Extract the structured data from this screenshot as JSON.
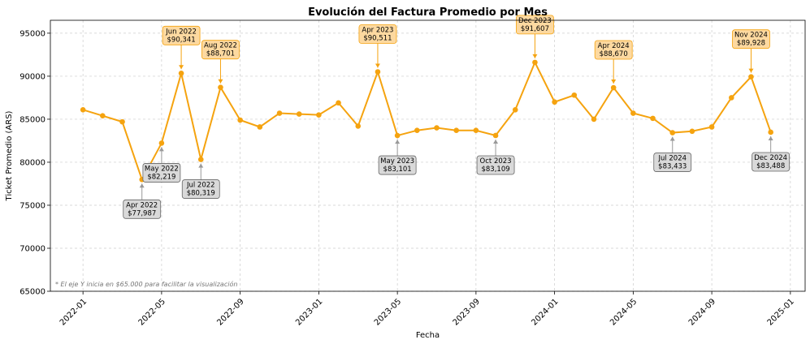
{
  "chart_data": {
    "type": "line",
    "title": "Evolución del Factura Promedio por Mes",
    "xlabel": "Fecha",
    "ylabel": "Ticket Promedio (ARS)",
    "ylim": [
      65000,
      96500
    ],
    "y_ticks": [
      65000,
      70000,
      75000,
      80000,
      85000,
      90000,
      95000
    ],
    "x_ticks": [
      "2022-01",
      "2022-05",
      "2022-09",
      "2023-01",
      "2023-05",
      "2023-09",
      "2024-01",
      "2024-05",
      "2024-09",
      "2025-01"
    ],
    "grid": true,
    "line_color": "#f5a30f",
    "note": "* El eje Y inicia en $65.000 para facilitar la visualización",
    "x": [
      "2022-01",
      "2022-02",
      "2022-03",
      "2022-04",
      "2022-05",
      "2022-06",
      "2022-07",
      "2022-08",
      "2022-09",
      "2022-10",
      "2022-11",
      "2022-12",
      "2023-01",
      "2023-02",
      "2023-03",
      "2023-04",
      "2023-05",
      "2023-06",
      "2023-07",
      "2023-08",
      "2023-09",
      "2023-10",
      "2023-11",
      "2023-12",
      "2024-01",
      "2024-02",
      "2024-03",
      "2024-04",
      "2024-05",
      "2024-06",
      "2024-07",
      "2024-08",
      "2024-09",
      "2024-10",
      "2024-11",
      "2024-12"
    ],
    "values": [
      86100,
      85400,
      84700,
      77987,
      82219,
      90341,
      80319,
      88701,
      84900,
      84100,
      85700,
      85600,
      85500,
      86900,
      84200,
      90511,
      83101,
      83700,
      84000,
      83700,
      83700,
      83109,
      86100,
      91607,
      87000,
      87800,
      85000,
      88670,
      85700,
      85100,
      83433,
      83600,
      84100,
      87500,
      89928,
      83488
    ],
    "annotations": [
      {
        "x": "2022-04",
        "label": "Apr 2022\n$77,987",
        "kind": "low",
        "dx": 0,
        "dy": -25
      },
      {
        "x": "2022-05",
        "label": "May 2022\n$82,219",
        "kind": "low",
        "dx": 0,
        "dy": -25
      },
      {
        "x": "2022-06",
        "label": "Jun 2022\n$90,341",
        "kind": "high",
        "dx": 0,
        "dy": -35
      },
      {
        "x": "2022-07",
        "label": "Jul 2022\n$80,319",
        "kind": "low",
        "dx": 0,
        "dy": -25
      },
      {
        "x": "2022-08",
        "label": "Aug 2022\n$88,701",
        "kind": "high",
        "dx": 0,
        "dy": -35
      },
      {
        "x": "2023-04",
        "label": "Apr 2023\n$90,511",
        "kind": "high",
        "dx": 0,
        "dy": -35
      },
      {
        "x": "2023-05",
        "label": "May 2023\n$83,101",
        "kind": "low",
        "dx": 0,
        "dy": -25
      },
      {
        "x": "2023-10",
        "label": "Oct 2023\n$83,109",
        "kind": "low",
        "dx": 0,
        "dy": -25
      },
      {
        "x": "2023-12",
        "label": "Dec 2023\n$91,607",
        "kind": "high",
        "dx": 0,
        "dy": -35
      },
      {
        "x": "2024-04",
        "label": "Apr 2024\n$88,670",
        "kind": "high",
        "dx": 0,
        "dy": -35
      },
      {
        "x": "2024-07",
        "label": "Jul 2024\n$83,433",
        "kind": "low",
        "dx": 0,
        "dy": -25
      },
      {
        "x": "2024-11",
        "label": "Nov 2024\n$89,928",
        "kind": "high",
        "dx": 0,
        "dy": -35
      },
      {
        "x": "2024-12",
        "label": "Dec 2024\n$83,488",
        "kind": "low",
        "dx": 0,
        "dy": -25
      }
    ],
    "high_box_color": "#fdd9a0",
    "high_border_color": "#f5a30f",
    "low_box_color": "#d9d9d9",
    "low_border_color": "#666666"
  }
}
